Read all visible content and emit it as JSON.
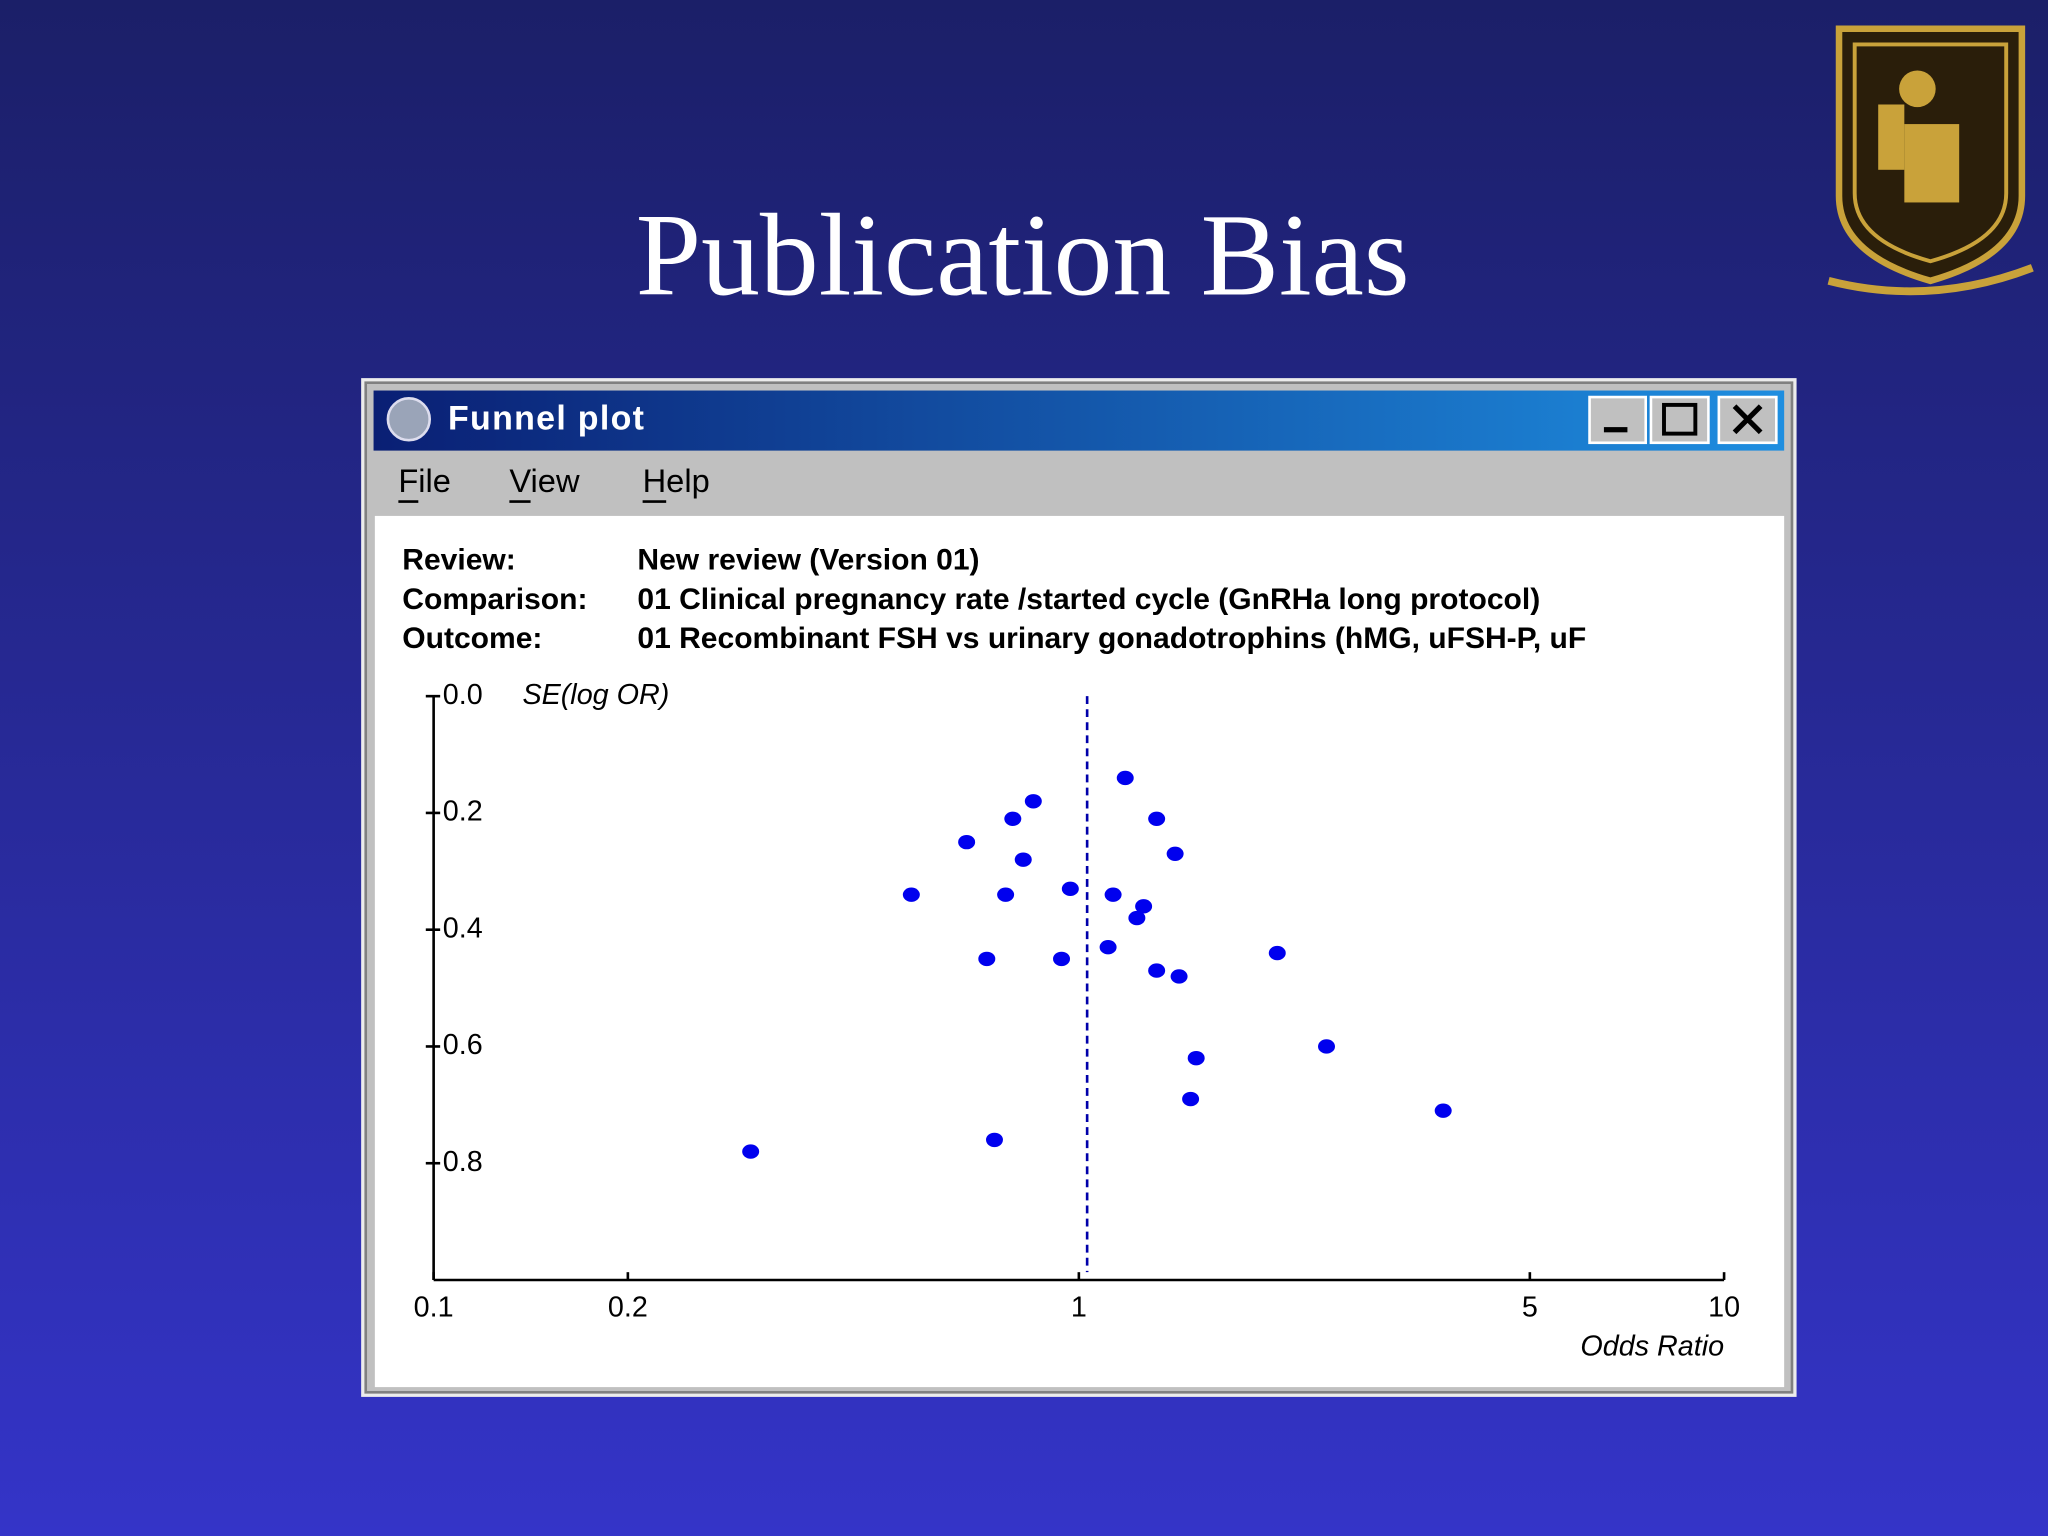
{
  "slide": {
    "title": "Publication Bias"
  },
  "window": {
    "title": "Funnel plot",
    "menu": [
      "File",
      "View",
      "Help"
    ]
  },
  "info": [
    [
      "Review:",
      "New review (Version 01)"
    ],
    [
      "Comparison:",
      "01 Clinical pregnancy rate /started cycle (GnRHa long protocol)"
    ],
    [
      "Outcome:",
      "01 Recombinant FSH vs urinary gonadotrophins (hMG, uFSH-P, uF"
    ]
  ],
  "chart_data": {
    "type": "scatter",
    "x_label": "Odds Ratio",
    "y_label": "SE(log OR)",
    "x": [
      1.18,
      0.85,
      0.79,
      1.32,
      0.67,
      1.41,
      0.82,
      0.55,
      0.77,
      0.97,
      1.13,
      1.26,
      1.23,
      1.11,
      0.72,
      0.94,
      1.32,
      1.43,
      2.03,
      2.42,
      1.52,
      1.49,
      3.67,
      0.31,
      0.74
    ],
    "values": [
      0.14,
      0.18,
      0.21,
      0.21,
      0.25,
      0.27,
      0.28,
      0.34,
      0.34,
      0.33,
      0.34,
      0.36,
      0.38,
      0.43,
      0.45,
      0.45,
      0.47,
      0.48,
      0.44,
      0.6,
      0.62,
      0.69,
      0.71,
      0.78,
      0.76
    ],
    "color": "#0000ee",
    "reference_line": 1.03,
    "x_log": true,
    "y_inverted": true,
    "xlim": [
      0.1,
      10
    ],
    "xticks": [
      0.1,
      0.2,
      1,
      5,
      10
    ],
    "ylim": [
      0,
      1
    ],
    "yticks": [
      {
        "value": 0,
        "label": "0.0"
      },
      0.2,
      0.4,
      0.6,
      0.8
    ]
  }
}
